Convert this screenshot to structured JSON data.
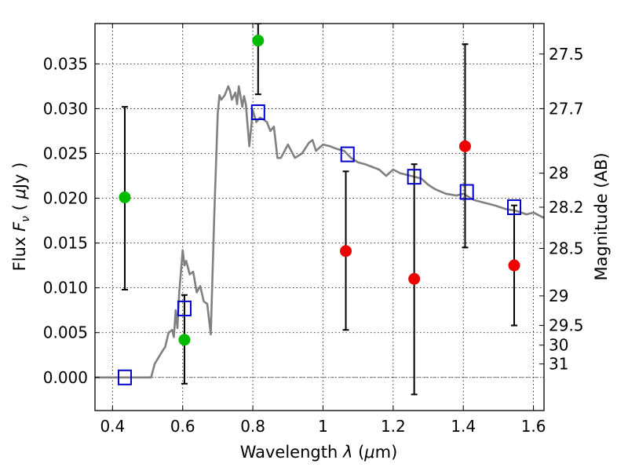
{
  "chart_data": {
    "type": "scatter",
    "xlabel": "Wavelength  λ (μm)",
    "ylabel": "Flux  F_ν  ( μJy )",
    "ylabel_parts": {
      "pre": "Flux ",
      "symbol": "F",
      "sub": "ν",
      "mid": "  ( ",
      "unit_symbol": "μ",
      "post": "Jy )"
    },
    "xlabel_parts": {
      "pre": "Wavelength  ",
      "symbol": "λ",
      "mid": " (",
      "unit_symbol": "μ",
      "post": "m)"
    },
    "y2label": "Magnitude (AB)",
    "xlim": [
      0.35,
      1.63
    ],
    "ylim": [
      -0.0037,
      0.0395
    ],
    "xticks": [
      0.4,
      0.6,
      0.8,
      1.0,
      1.2,
      1.4,
      1.6
    ],
    "xtick_labels": [
      "0.4",
      "0.6",
      "0.8",
      "1",
      "1.2",
      "1.4",
      "1.6"
    ],
    "yticks": [
      0.0,
      0.005,
      0.01,
      0.015,
      0.02,
      0.025,
      0.03,
      0.035
    ],
    "ytick_labels": [
      "0.000",
      "0.005",
      "0.010",
      "0.015",
      "0.020",
      "0.025",
      "0.030",
      "0.035"
    ],
    "y2ticks": [
      {
        "label": "27.5",
        "flux": 0.0361
      },
      {
        "label": "27.7",
        "flux": 0.03
      },
      {
        "label": "28",
        "flux": 0.0228
      },
      {
        "label": "28.2",
        "flux": 0.019
      },
      {
        "label": "28.5",
        "flux": 0.0144
      },
      {
        "label": "29",
        "flux": 0.0091
      },
      {
        "label": "29.5",
        "flux": 0.0058
      },
      {
        "label": "30",
        "flux": 0.0036
      },
      {
        "label": "31",
        "flux": 0.0015
      }
    ],
    "grid": true,
    "zero_line": 0.0,
    "colors": {
      "model": "#808080",
      "green": "#00bb00",
      "red": "#ee0000",
      "model_points": "#0000cc",
      "errorbar": "#000000"
    },
    "series": [
      {
        "name": "model spectrum",
        "type": "line",
        "x": [
          0.35,
          0.51,
          0.52,
          0.54,
          0.55,
          0.56,
          0.57,
          0.575,
          0.58,
          0.585,
          0.59,
          0.595,
          0.6,
          0.605,
          0.61,
          0.62,
          0.63,
          0.64,
          0.65,
          0.66,
          0.67,
          0.68,
          0.69,
          0.7,
          0.705,
          0.71,
          0.72,
          0.73,
          0.735,
          0.74,
          0.75,
          0.755,
          0.76,
          0.77,
          0.775,
          0.78,
          0.79,
          0.8,
          0.81,
          0.82,
          0.83,
          0.84,
          0.85,
          0.86,
          0.87,
          0.88,
          0.9,
          0.92,
          0.94,
          0.96,
          0.97,
          0.98,
          1.0,
          1.02,
          1.04,
          1.06,
          1.08,
          1.1,
          1.12,
          1.14,
          1.16,
          1.18,
          1.2,
          1.22,
          1.25,
          1.28,
          1.3,
          1.32,
          1.35,
          1.38,
          1.4,
          1.43,
          1.46,
          1.49,
          1.52,
          1.55,
          1.58,
          1.6,
          1.63
        ],
        "y": [
          0.0,
          0.0,
          0.0015,
          0.0028,
          0.0034,
          0.005,
          0.0053,
          0.0045,
          0.0075,
          0.0055,
          0.0095,
          0.0118,
          0.0142,
          0.0125,
          0.013,
          0.0115,
          0.0118,
          0.0095,
          0.0102,
          0.0085,
          0.0082,
          0.0048,
          0.018,
          0.0295,
          0.0315,
          0.031,
          0.0315,
          0.0325,
          0.032,
          0.031,
          0.0318,
          0.0305,
          0.0325,
          0.0302,
          0.0314,
          0.0305,
          0.0258,
          0.0298,
          0.0285,
          0.029,
          0.0288,
          0.0285,
          0.0275,
          0.028,
          0.0245,
          0.0245,
          0.026,
          0.0245,
          0.025,
          0.0262,
          0.0265,
          0.0253,
          0.026,
          0.0258,
          0.0255,
          0.0253,
          0.0245,
          0.024,
          0.0238,
          0.0235,
          0.0232,
          0.0225,
          0.0232,
          0.0228,
          0.0225,
          0.0222,
          0.0215,
          0.021,
          0.0205,
          0.0203,
          0.0205,
          0.0198,
          0.0195,
          0.0192,
          0.0188,
          0.0186,
          0.0182,
          0.0184,
          0.0178
        ]
      },
      {
        "name": "green detections",
        "type": "scatter",
        "x": [
          0.435,
          0.605,
          0.815
        ],
        "y": [
          0.0201,
          0.0042,
          0.0376
        ],
        "yerr_low": [
          0.0098,
          -0.0007,
          0.0316
        ],
        "yerr_high": [
          0.0302,
          0.0092,
          0.0395
        ]
      },
      {
        "name": "red detections",
        "type": "scatter",
        "x": [
          1.065,
          1.26,
          1.405,
          1.545
        ],
        "y": [
          0.0141,
          0.011,
          0.0258,
          0.0125
        ],
        "yerr_low": [
          0.0053,
          -0.0019,
          0.0145,
          0.0058
        ],
        "yerr_high": [
          0.023,
          0.0238,
          0.0372,
          0.0192
        ]
      },
      {
        "name": "model synthetic photometry",
        "type": "scatter",
        "x": [
          0.435,
          0.605,
          0.815,
          1.07,
          1.26,
          1.41,
          1.545
        ],
        "y": [
          0.0,
          0.0077,
          0.0296,
          0.0249,
          0.0224,
          0.0207,
          0.019
        ]
      }
    ]
  }
}
